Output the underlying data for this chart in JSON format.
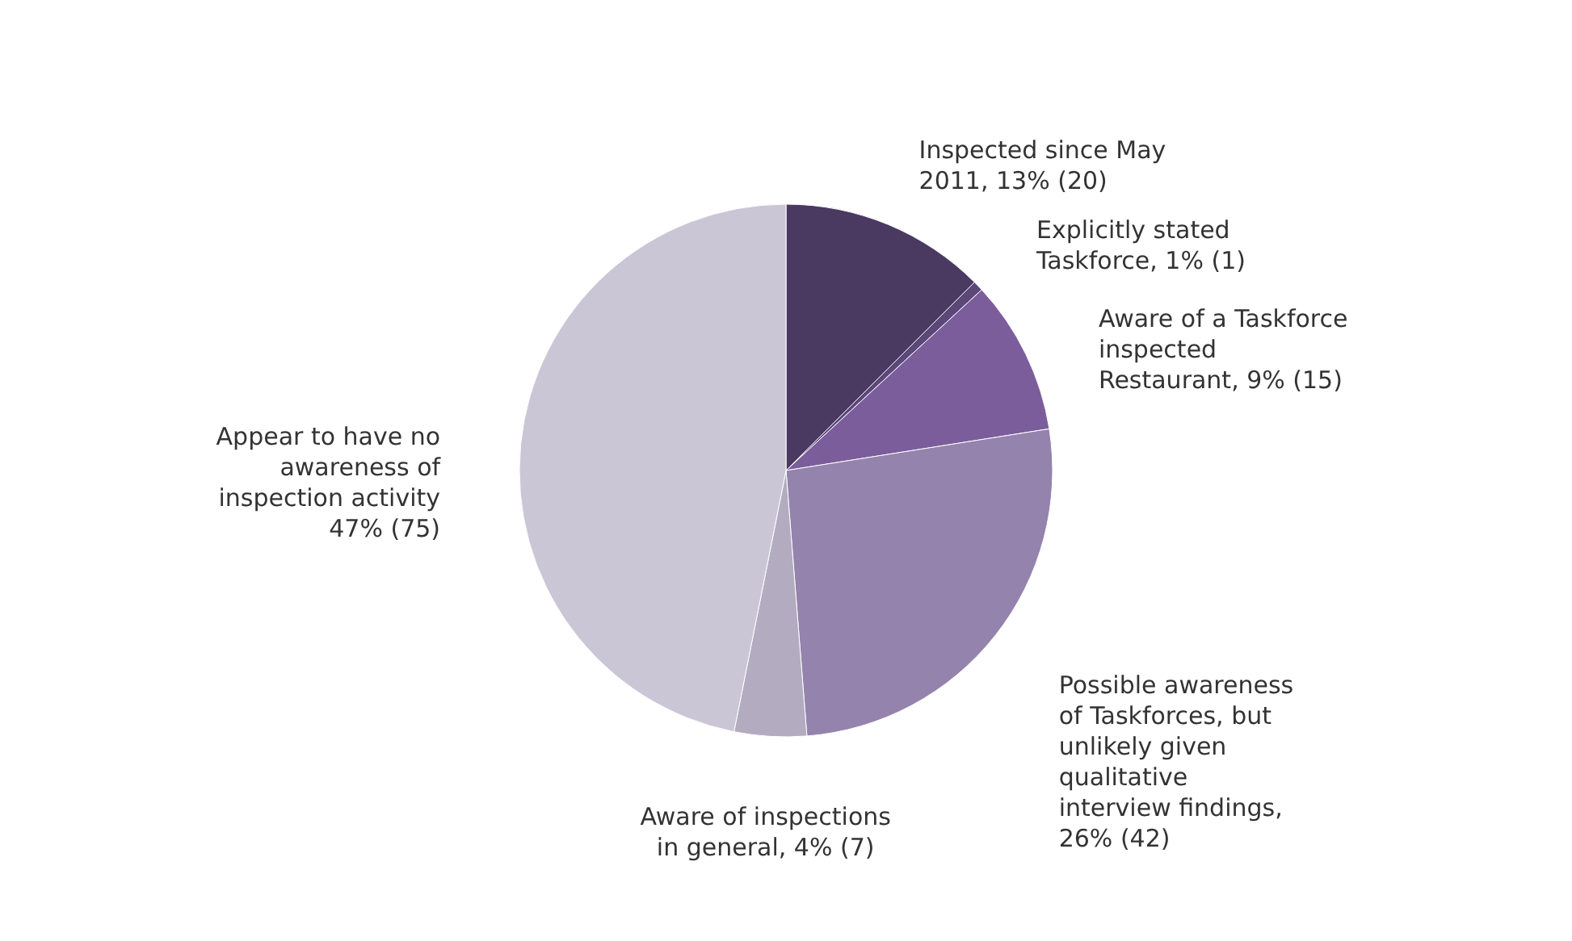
{
  "chart_data": {
    "type": "pie",
    "categories": [
      "Inspected since May 2011, 13% (20)",
      "Explicitly stated Taskforce, 1% (1)",
      "Aware of a Taskforce inspected Restaurant, 9% (15)",
      "Possible awareness of Taskforces, but unlikely given qualitative interview findings, 26% (42)",
      "Aware of inspections in general, 4% (7)",
      "Appear to have no awareness of inspection activity 47% (75)"
    ],
    "values": [
      20,
      1,
      15,
      42,
      7,
      75
    ],
    "colors": [
      "#4a3a62",
      "#5b4878",
      "#7b5d9c",
      "#9483ad",
      "#b3acc0",
      "#cbc6d6"
    ]
  }
}
